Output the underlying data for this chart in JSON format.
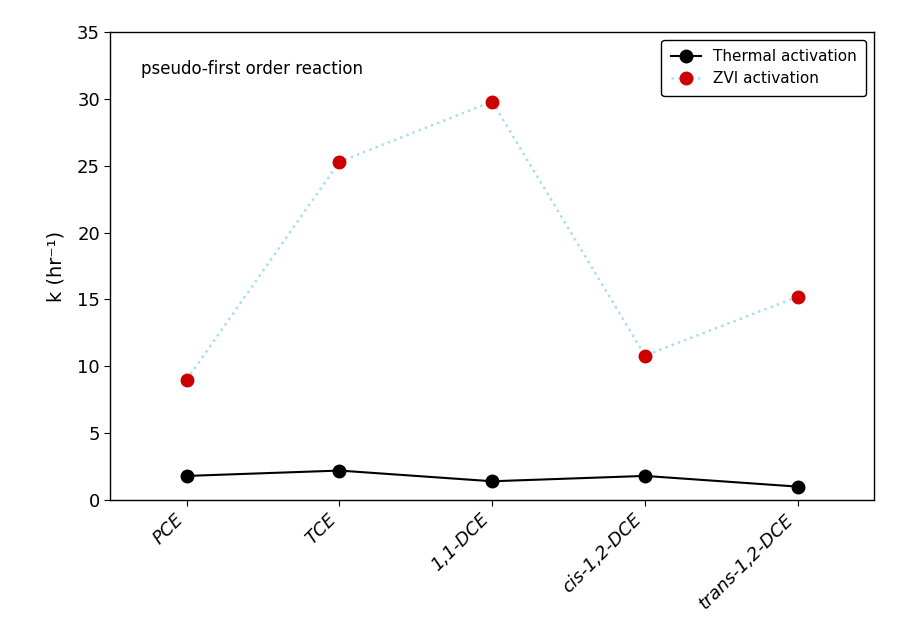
{
  "categories": [
    "PCE",
    "TCE",
    "1,1-DCE",
    "cis-1,2-DCE",
    "trans-1,2-DCE"
  ],
  "thermal_values": [
    1.8,
    2.2,
    1.4,
    1.8,
    1.0
  ],
  "zvi_values": [
    9.0,
    25.3,
    29.8,
    10.8,
    15.2
  ],
  "thermal_color": "#000000",
  "zvi_color": "#cc0000",
  "zvi_line_color": "#aaddf5",
  "thermal_label": "Thermal activation",
  "zvi_label": "ZVI activation",
  "annotation": "pseudo-first order reaction",
  "ylabel": "k (hr⁻¹)",
  "ylim": [
    0,
    35
  ],
  "yticks": [
    0,
    5,
    10,
    15,
    20,
    25,
    30,
    35
  ],
  "bg_color": "#ffffff",
  "marker_size": 9,
  "linewidth": 1.5,
  "figsize": [
    9.2,
    6.41
  ],
  "dpi": 100
}
